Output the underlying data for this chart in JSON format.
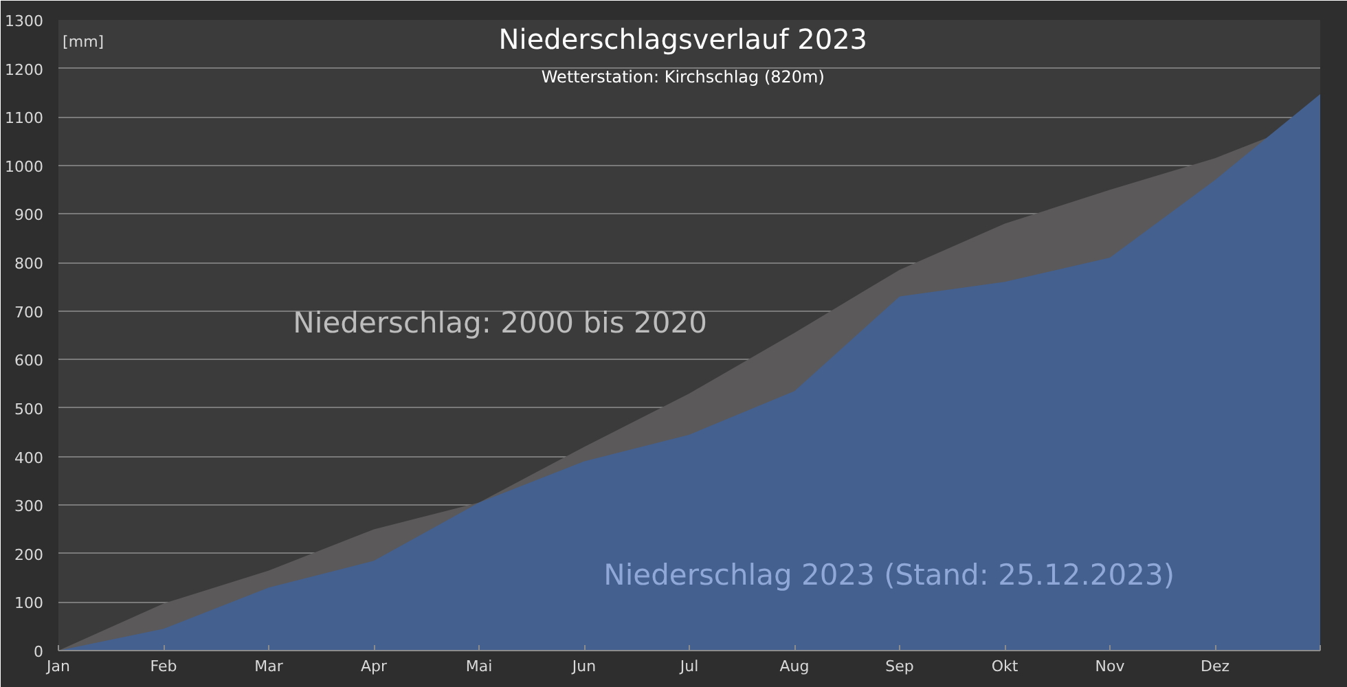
{
  "chart_data": {
    "type": "area",
    "title": "Niederschlagsverlauf 2023",
    "subtitle": "Wetterstation: Kirchschlag (820m)",
    "ylabel": "[mm]",
    "categories": [
      "Jan",
      "Feb",
      "Mar",
      "Apr",
      "Mai",
      "Jun",
      "Jul",
      "Aug",
      "Sep",
      "Okt",
      "Nov",
      "Dez",
      null
    ],
    "series": [
      {
        "name": "Niederschlag: 2000 bis 2020",
        "color": "#5b5959",
        "values": [
          0,
          97,
          165,
          250,
          305,
          420,
          530,
          655,
          785,
          880,
          950,
          1015,
          1100
        ]
      },
      {
        "name": "Niederschlag 2023 (Stand: 25.12.2023)",
        "color": "#44608f",
        "values": [
          0,
          45,
          130,
          185,
          305,
          390,
          445,
          535,
          730,
          760,
          810,
          970,
          1147
        ]
      }
    ],
    "ylim": [
      0,
      1300
    ],
    "yticks": [
      0,
      100,
      200,
      300,
      400,
      500,
      600,
      700,
      800,
      900,
      1000,
      1100,
      1200,
      1300
    ],
    "grid": "y"
  }
}
